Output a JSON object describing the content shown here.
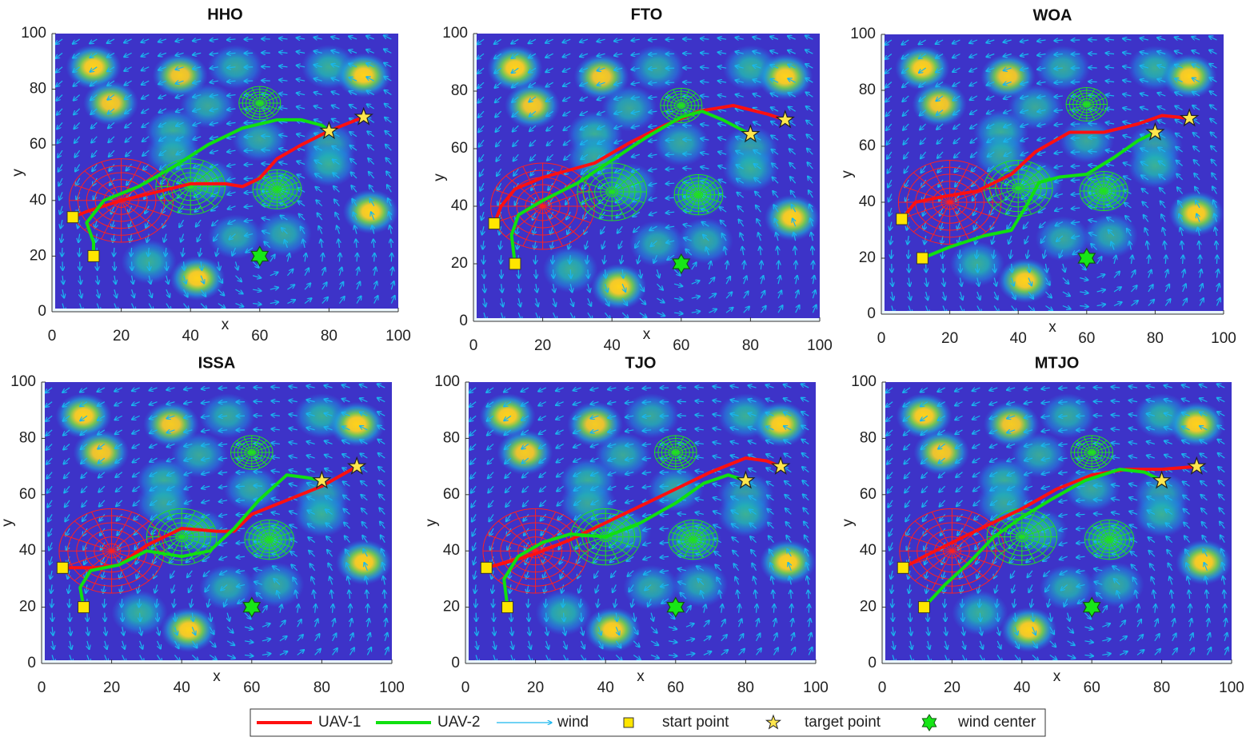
{
  "chart_data": [
    {
      "type": "path",
      "title": "HHO",
      "xlabel": "x",
      "ylabel": "y",
      "xlim": [
        0,
        100
      ],
      "ylim": [
        0,
        100
      ],
      "xticks": [
        0,
        20,
        40,
        60,
        80,
        100
      ],
      "yticks": [
        0,
        20,
        40,
        60,
        80,
        100
      ],
      "series": [
        {
          "name": "UAV-1",
          "color": "#ff1010",
          "x": [
            6,
            10,
            20,
            30,
            40,
            50,
            55,
            60,
            65,
            72,
            80,
            90
          ],
          "values": [
            34,
            36,
            40,
            43,
            46,
            46,
            45,
            48,
            55,
            60,
            65,
            70
          ]
        },
        {
          "name": "UAV-2",
          "color": "#10e010",
          "x": [
            12,
            12,
            10,
            15,
            25,
            35,
            45,
            55,
            65,
            72,
            78,
            80
          ],
          "values": [
            20,
            25,
            32,
            40,
            45,
            52,
            60,
            66,
            69,
            69,
            67,
            65
          ]
        }
      ]
    },
    {
      "type": "path",
      "title": "FTO",
      "xlabel": "x",
      "ylabel": "y",
      "xlim": [
        0,
        100
      ],
      "ylim": [
        0,
        100
      ],
      "xticks": [
        0,
        20,
        40,
        60,
        80,
        100
      ],
      "yticks": [
        0,
        20,
        40,
        60,
        80,
        100
      ],
      "series": [
        {
          "name": "UAV-1",
          "color": "#ff1010",
          "x": [
            6,
            8,
            12,
            20,
            35,
            45,
            55,
            65,
            75,
            85,
            90
          ],
          "values": [
            34,
            40,
            46,
            50,
            55,
            62,
            68,
            73,
            75,
            72,
            70
          ]
        },
        {
          "name": "UAV-2",
          "color": "#10e010",
          "x": [
            12,
            11,
            13,
            20,
            30,
            40,
            50,
            60,
            66,
            72,
            80
          ],
          "values": [
            20,
            30,
            37,
            42,
            48,
            56,
            64,
            71,
            73,
            70,
            65
          ]
        }
      ]
    },
    {
      "type": "path",
      "title": "WOA",
      "xlabel": "x",
      "ylabel": "y",
      "xlim": [
        0,
        100
      ],
      "ylim": [
        0,
        100
      ],
      "xticks": [
        0,
        20,
        40,
        60,
        80,
        100
      ],
      "yticks": [
        0,
        20,
        40,
        60,
        80,
        100
      ],
      "series": [
        {
          "name": "UAV-1",
          "color": "#ff1010",
          "x": [
            6,
            10,
            18,
            28,
            38,
            45,
            55,
            65,
            75,
            82,
            90
          ],
          "values": [
            34,
            40,
            42,
            44,
            50,
            58,
            65,
            65,
            68,
            71,
            70
          ]
        },
        {
          "name": "UAV-2",
          "color": "#10e010",
          "x": [
            12,
            20,
            30,
            38,
            43,
            46,
            52,
            60,
            68,
            75,
            80
          ],
          "values": [
            20,
            24,
            28,
            30,
            40,
            47,
            49,
            50,
            56,
            62,
            65
          ]
        }
      ]
    },
    {
      "type": "path",
      "title": "ISSA",
      "xlabel": "x",
      "ylabel": "y",
      "xlim": [
        0,
        100
      ],
      "ylim": [
        0,
        100
      ],
      "xticks": [
        0,
        20,
        40,
        60,
        80,
        100
      ],
      "yticks": [
        0,
        20,
        40,
        60,
        80,
        100
      ],
      "series": [
        {
          "name": "UAV-1",
          "color": "#ff1010",
          "x": [
            6,
            15,
            22,
            30,
            40,
            50,
            55,
            60,
            70,
            80,
            90
          ],
          "values": [
            34,
            34,
            35,
            42,
            48,
            47,
            47,
            53,
            58,
            63,
            70
          ]
        },
        {
          "name": "UAV-2",
          "color": "#10e010",
          "x": [
            12,
            11,
            14,
            22,
            30,
            40,
            48,
            55,
            62,
            70,
            76,
            80
          ],
          "values": [
            20,
            27,
            33,
            35,
            40,
            38,
            40,
            48,
            58,
            67,
            66,
            65
          ]
        }
      ]
    },
    {
      "type": "path",
      "title": "TJO",
      "xlabel": "x",
      "ylabel": "y",
      "xlim": [
        0,
        100
      ],
      "ylim": [
        0,
        100
      ],
      "xticks": [
        0,
        20,
        40,
        60,
        80,
        100
      ],
      "yticks": [
        0,
        20,
        40,
        60,
        80,
        100
      ],
      "series": [
        {
          "name": "UAV-1",
          "color": "#ff1010",
          "x": [
            6,
            12,
            20,
            30,
            40,
            50,
            60,
            70,
            80,
            86,
            90
          ],
          "values": [
            34,
            36,
            39,
            44,
            50,
            56,
            62,
            68,
            73,
            72,
            70
          ]
        },
        {
          "name": "UAV-2",
          "color": "#10e010",
          "x": [
            12,
            11,
            15,
            22,
            30,
            40,
            50,
            60,
            68,
            75,
            80
          ],
          "values": [
            20,
            30,
            38,
            43,
            46,
            45,
            50,
            57,
            64,
            67,
            65
          ]
        }
      ]
    },
    {
      "type": "path",
      "title": "MTJO",
      "xlabel": "x",
      "ylabel": "y",
      "xlim": [
        0,
        100
      ],
      "ylim": [
        0,
        100
      ],
      "xticks": [
        0,
        20,
        40,
        60,
        80,
        100
      ],
      "yticks": [
        0,
        20,
        40,
        60,
        80,
        100
      ],
      "series": [
        {
          "name": "UAV-1",
          "color": "#ff1010",
          "x": [
            6,
            12,
            20,
            30,
            40,
            50,
            60,
            70,
            80,
            90
          ],
          "values": [
            34,
            38,
            43,
            49,
            55,
            62,
            67,
            69,
            69,
            70
          ]
        },
        {
          "name": "UAV-2",
          "color": "#10e010",
          "x": [
            12,
            18,
            25,
            32,
            40,
            48,
            58,
            68,
            75,
            80
          ],
          "values": [
            20,
            28,
            36,
            45,
            52,
            58,
            65,
            69,
            68,
            65
          ]
        }
      ]
    }
  ],
  "environment": {
    "obstacles": {
      "x": [
        12,
        37,
        53,
        80,
        90,
        17,
        45,
        35,
        35,
        60,
        80,
        80,
        45,
        92,
        28,
        53,
        67,
        42,
        65
      ],
      "y": [
        88,
        85,
        88,
        88,
        85,
        75,
        74,
        65,
        57,
        62,
        60,
        53,
        47,
        36,
        18,
        27,
        28,
        12,
        44
      ],
      "peak": [
        1,
        0.9,
        0.6,
        0.7,
        1,
        0.9,
        0.6,
        0.7,
        0.6,
        0.6,
        0.5,
        0.7,
        0.6,
        1,
        0.7,
        0.6,
        0.6,
        1,
        0.5
      ]
    },
    "threats": {
      "x": [
        20,
        40,
        60,
        65
      ],
      "y": [
        40,
        45,
        75,
        44
      ],
      "r": [
        15,
        10,
        6,
        7
      ],
      "color": [
        "#ff2020",
        "#20e020",
        "#20e020",
        "#20e020"
      ]
    },
    "wind": {
      "label": "wind",
      "color": "#19b6ee"
    },
    "start_points": {
      "label": "start point",
      "color": "#ffe600",
      "x": [
        6,
        12
      ],
      "y": [
        34,
        20
      ]
    },
    "target_points": {
      "label": "target point",
      "color": "#ffe64d",
      "x": [
        90,
        80
      ],
      "y": [
        70,
        65
      ]
    },
    "wind_center": {
      "label": "wind center",
      "color": "#17e617",
      "x": [
        60
      ],
      "y": [
        20
      ]
    }
  }
}
